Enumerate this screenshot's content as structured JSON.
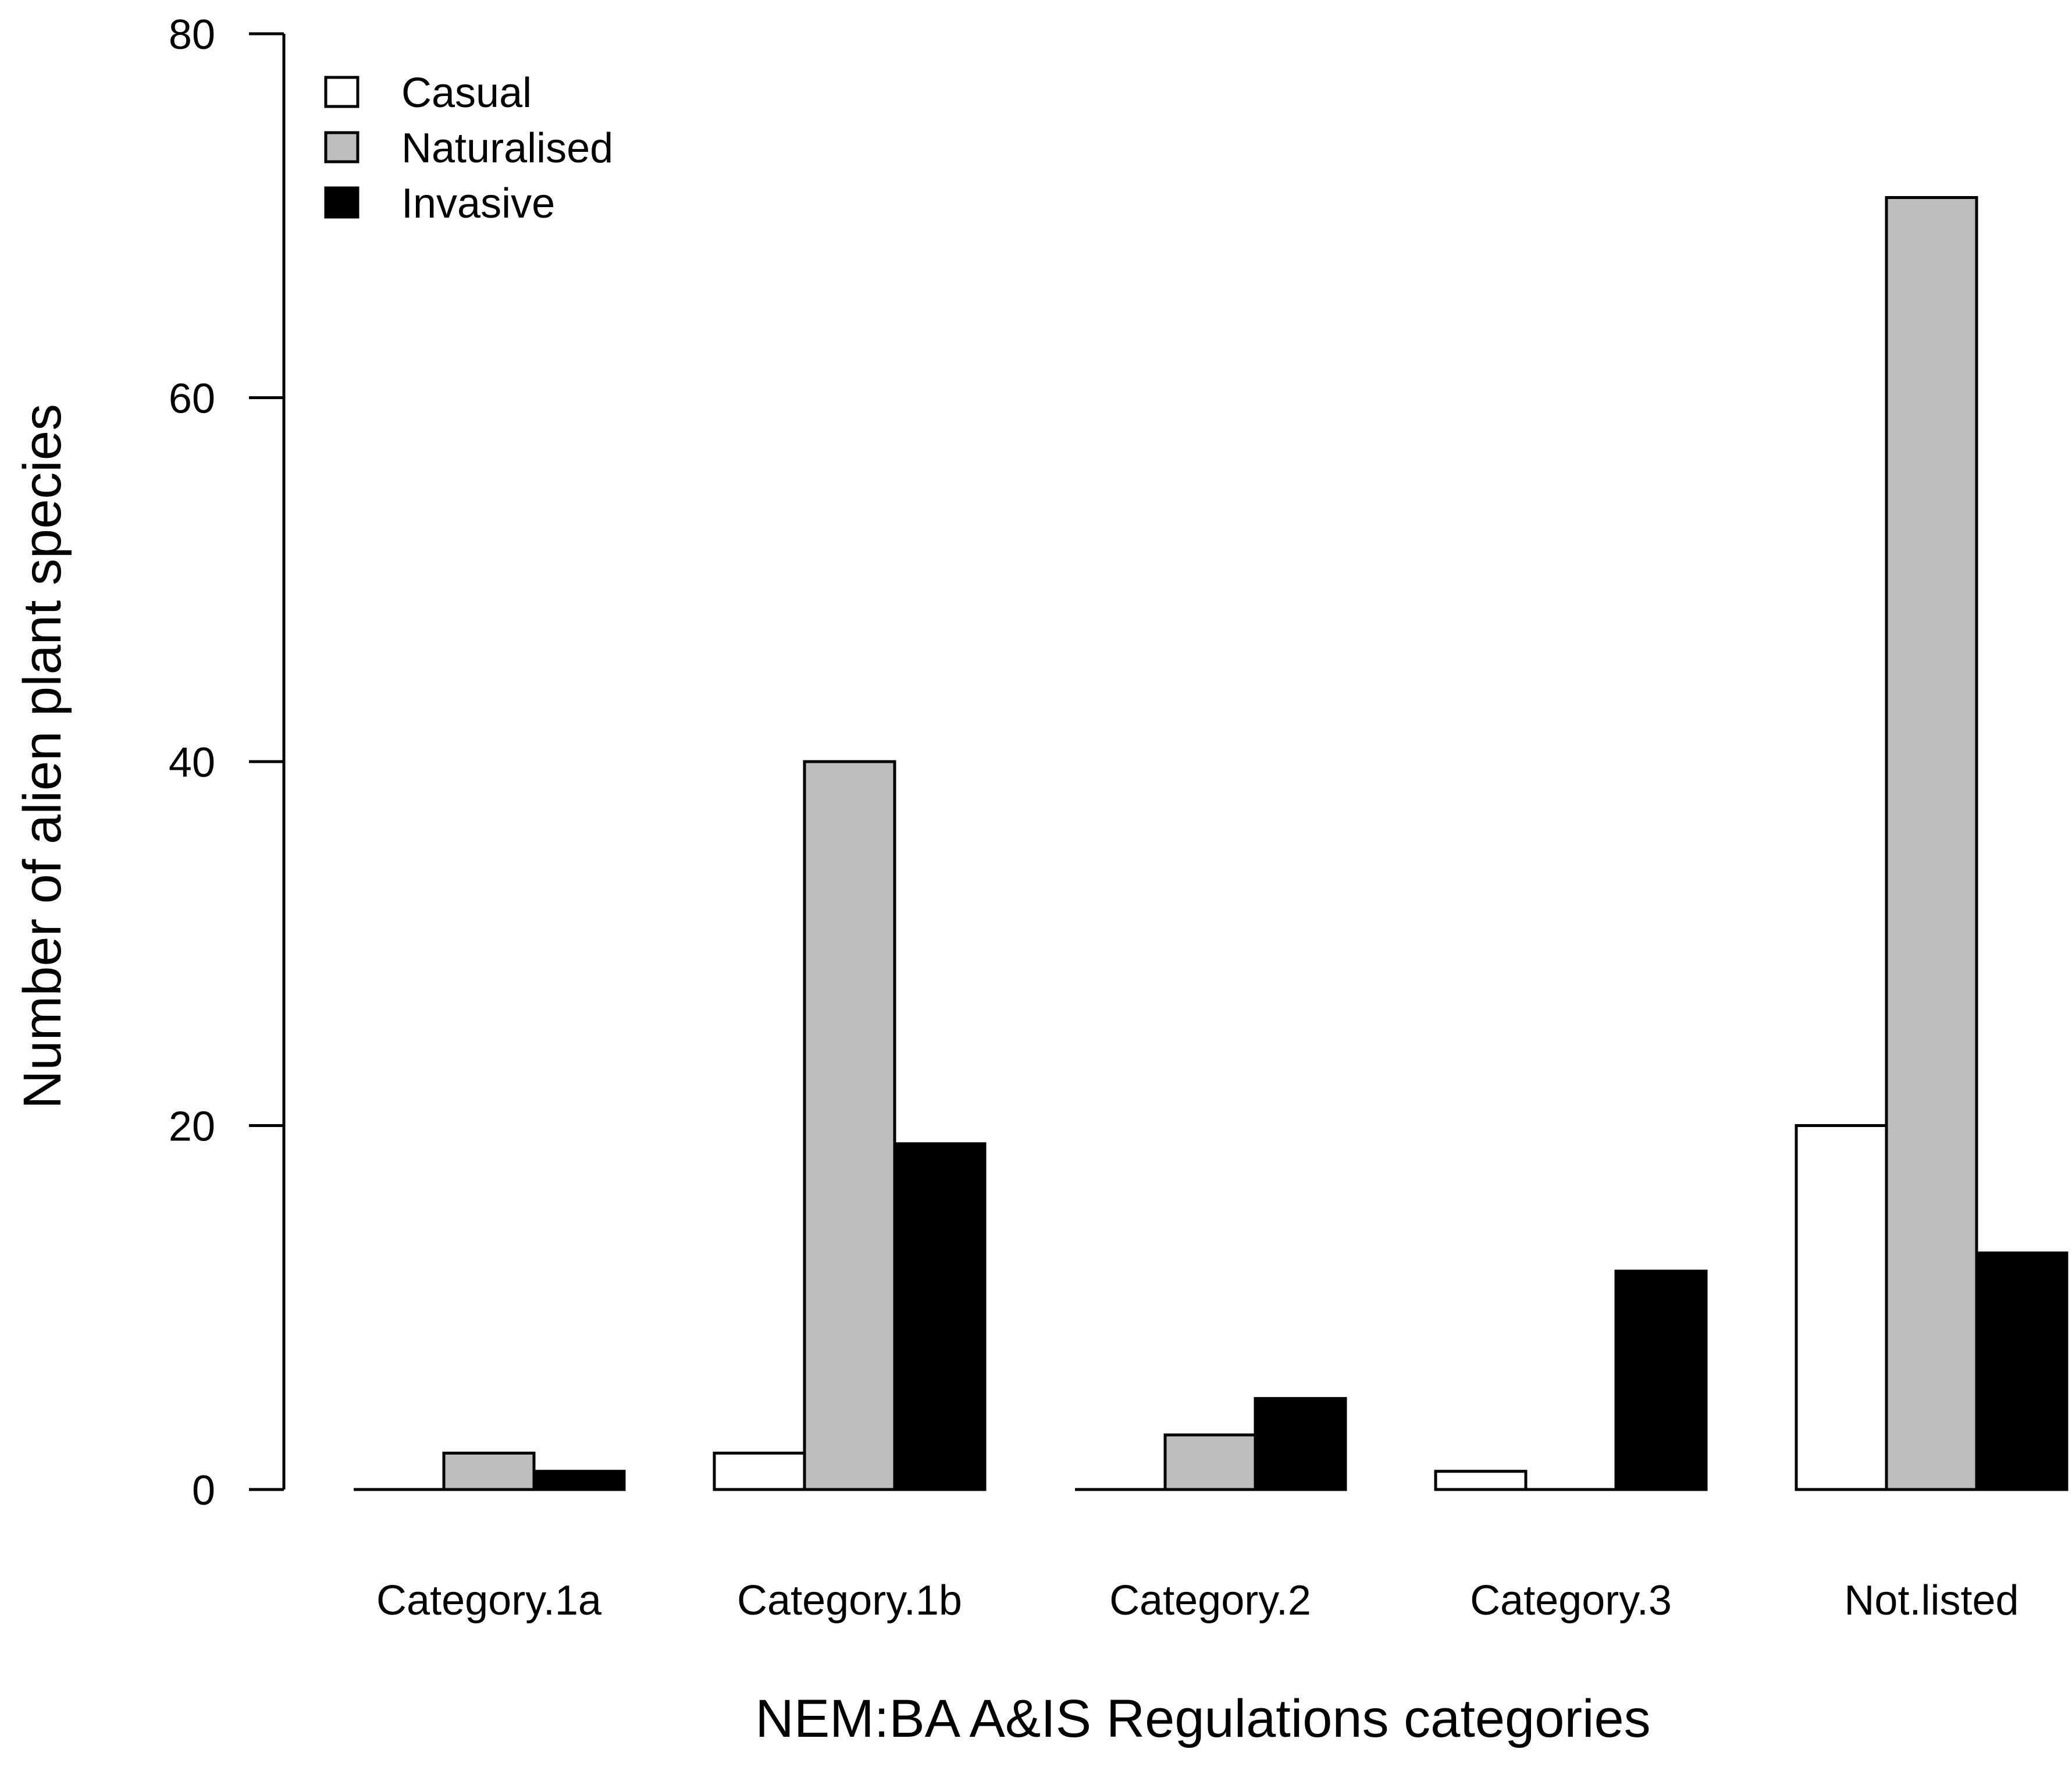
{
  "chart_data": {
    "type": "bar",
    "title": "",
    "xlabel": "NEM:BA A&IS Regulations categories",
    "ylabel": "Number of alien plant species",
    "categories": [
      "Category.1a",
      "Category.1b",
      "Category.2",
      "Category.3",
      "Not.listed"
    ],
    "series": [
      {
        "name": "Casual",
        "color": "#ffffff",
        "values": [
          0,
          2,
          0,
          1,
          20
        ]
      },
      {
        "name": "Naturalised",
        "color": "#bebebe",
        "values": [
          2,
          40,
          3,
          0,
          71
        ]
      },
      {
        "name": "Invasive",
        "color": "#000000",
        "values": [
          1,
          19,
          5,
          12,
          13
        ]
      }
    ],
    "ylim": [
      0,
      80
    ],
    "yticks": [
      0,
      20,
      40,
      60,
      80
    ],
    "grid": false,
    "legend_position": "top-left"
  }
}
